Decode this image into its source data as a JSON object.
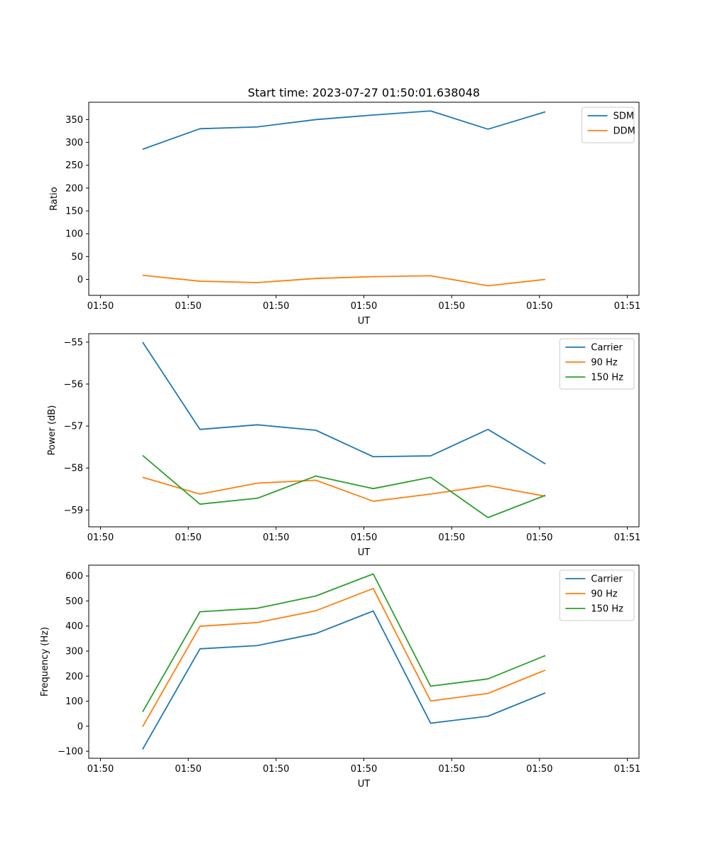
{
  "chart_data": [
    {
      "type": "line",
      "title": "Start time: 2023-07-27 01:50:01.638048",
      "xlabel": "UT",
      "ylabel": "Ratio",
      "xlim": [
        -0.3,
        4.4
      ],
      "ylim": [
        -35,
        388
      ],
      "xtick_positions": [
        -0.2,
        0.55,
        1.3,
        2.05,
        2.8,
        3.55,
        4.3
      ],
      "xtick_labels": [
        "01:50",
        "01:50",
        "01:50",
        "01:50",
        "01:50",
        "01:50",
        "01:51"
      ],
      "yticks": [
        0,
        50,
        100,
        150,
        200,
        250,
        300,
        350
      ],
      "x": [
        0.16,
        0.65,
        1.14,
        1.64,
        2.13,
        2.62,
        3.11,
        3.6
      ],
      "legend_location": "upper-right",
      "series": [
        {
          "name": "SDM",
          "color": "#1f77b4",
          "values": [
            285,
            330,
            334,
            350,
            360,
            369,
            329,
            367
          ]
        },
        {
          "name": "DDM",
          "color": "#ff7f0e",
          "values": [
            9,
            -4,
            -7,
            2,
            6,
            8,
            -14,
            0
          ]
        }
      ]
    },
    {
      "type": "line",
      "title": "",
      "xlabel": "UT",
      "ylabel": "Power (dB)",
      "xlim": [
        -0.3,
        4.4
      ],
      "ylim": [
        -59.4,
        -54.8
      ],
      "xtick_positions": [
        -0.2,
        0.55,
        1.3,
        2.05,
        2.8,
        3.55,
        4.3
      ],
      "xtick_labels": [
        "01:50",
        "01:50",
        "01:50",
        "01:50",
        "01:50",
        "01:50",
        "01:51"
      ],
      "yticks": [
        -59,
        -58,
        -57,
        -56,
        -55
      ],
      "ytick_labels": [
        "−59",
        "−58",
        "−57",
        "−56",
        "−55"
      ],
      "x": [
        0.16,
        0.65,
        1.14,
        1.64,
        2.13,
        2.62,
        3.11,
        3.6
      ],
      "legend_location": "upper-right",
      "series": [
        {
          "name": "Carrier",
          "color": "#1f77b4",
          "values": [
            -55.0,
            -57.08,
            -56.97,
            -57.1,
            -57.73,
            -57.71,
            -57.08,
            -57.9
          ]
        },
        {
          "name": "90 Hz",
          "color": "#ff7f0e",
          "values": [
            -58.22,
            -58.62,
            -58.36,
            -58.29,
            -58.79,
            -58.62,
            -58.42,
            -58.67
          ]
        },
        {
          "name": "150 Hz",
          "color": "#2ca02c",
          "values": [
            -57.7,
            -58.86,
            -58.72,
            -58.19,
            -58.49,
            -58.22,
            -59.18,
            -58.65
          ]
        }
      ]
    },
    {
      "type": "line",
      "title": "",
      "xlabel": "UT",
      "ylabel": "Frequency (Hz)",
      "xlim": [
        -0.3,
        4.4
      ],
      "ylim": [
        -128,
        643
      ],
      "xtick_positions": [
        -0.2,
        0.55,
        1.3,
        2.05,
        2.8,
        3.55,
        4.3
      ],
      "xtick_labels": [
        "01:50",
        "01:50",
        "01:50",
        "01:50",
        "01:50",
        "01:50",
        "01:51"
      ],
      "yticks": [
        -100,
        0,
        100,
        200,
        300,
        400,
        500,
        600
      ],
      "ytick_labels": [
        "−100",
        "0",
        "100",
        "200",
        "300",
        "400",
        "500",
        "600"
      ],
      "x": [
        0.16,
        0.65,
        1.14,
        1.64,
        2.13,
        2.62,
        3.11,
        3.6
      ],
      "legend_location": "upper-right",
      "series": [
        {
          "name": "Carrier",
          "color": "#1f77b4",
          "values": [
            -92,
            309,
            322,
            370,
            460,
            12,
            40,
            133
          ]
        },
        {
          "name": "90 Hz",
          "color": "#ff7f0e",
          "values": [
            -2,
            399,
            414,
            461,
            550,
            101,
            131,
            224
          ]
        },
        {
          "name": "150 Hz",
          "color": "#2ca02c",
          "values": [
            57,
            457,
            471,
            520,
            608,
            160,
            189,
            282
          ]
        }
      ]
    }
  ]
}
